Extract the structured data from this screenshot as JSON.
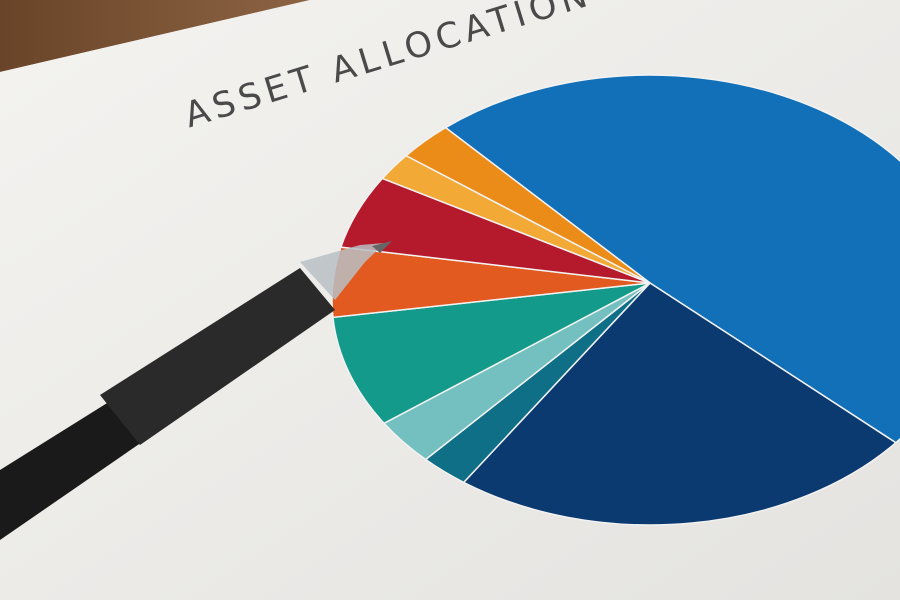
{
  "title": "ASSET ALLOCATION",
  "chart_data": {
    "type": "pie",
    "title": "ASSET ALLOCATION",
    "start_angle_deg": -130,
    "slices": [
      {
        "value": 47,
        "color": "#1170b8"
      },
      {
        "value": 24,
        "color": "#0b3a70"
      },
      {
        "value": 2.5,
        "color": "#0f6f86"
      },
      {
        "value": 3.3,
        "color": "#74c0c0"
      },
      {
        "value": 8,
        "color": "#139a8a"
      },
      {
        "value": 5,
        "color": "#e25a20"
      },
      {
        "value": 5.3,
        "color": "#b5192c"
      },
      {
        "value": 2,
        "color": "#f2a936"
      },
      {
        "value": 2.8,
        "color": "#eb8c18"
      }
    ]
  },
  "colors": {
    "paper": "#efeeeb",
    "wood": "#7a5234",
    "pen": "#1e1e1e"
  }
}
